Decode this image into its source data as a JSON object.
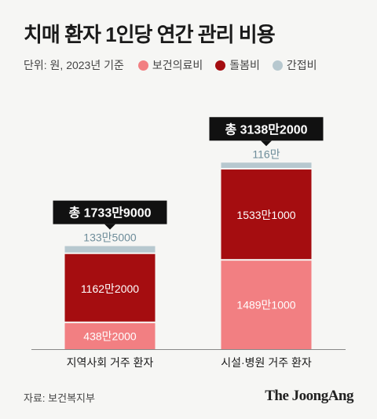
{
  "title": "치매 환자 1인당 연간 관리 비용",
  "unit_label": "단위: 원, 2023년 기준",
  "legend": [
    {
      "label": "보건의료비",
      "color": "#f27f82"
    },
    {
      "label": "돌봄비",
      "color": "#a50d10"
    },
    {
      "label": "간접비",
      "color": "#b7c8cf"
    }
  ],
  "source": "자료: 보건복지부",
  "brand": "The JoongAng",
  "chart_data": {
    "type": "bar",
    "stacked": true,
    "categories": [
      "지역사회 거주 환자",
      "시설·병원 거주 환자"
    ],
    "series": [
      {
        "name": "보건의료비",
        "color": "#f27f82",
        "values": [
          4382000,
          14891000
        ],
        "labels": [
          "438만2000",
          "1489만1000"
        ]
      },
      {
        "name": "돌봄비",
        "color": "#a50d10",
        "values": [
          11622000,
          15331000
        ],
        "labels": [
          "1162만2000",
          "1533만1000"
        ]
      },
      {
        "name": "간접비",
        "color": "#b7c8cf",
        "values": [
          1335000,
          1160000
        ],
        "labels": [
          "133만5000",
          "116만"
        ]
      }
    ],
    "totals": [
      17339000,
      31382000
    ],
    "total_labels": [
      "총 1733만9000",
      "총 3138만2000"
    ],
    "ylim": [
      0,
      33000000
    ]
  }
}
